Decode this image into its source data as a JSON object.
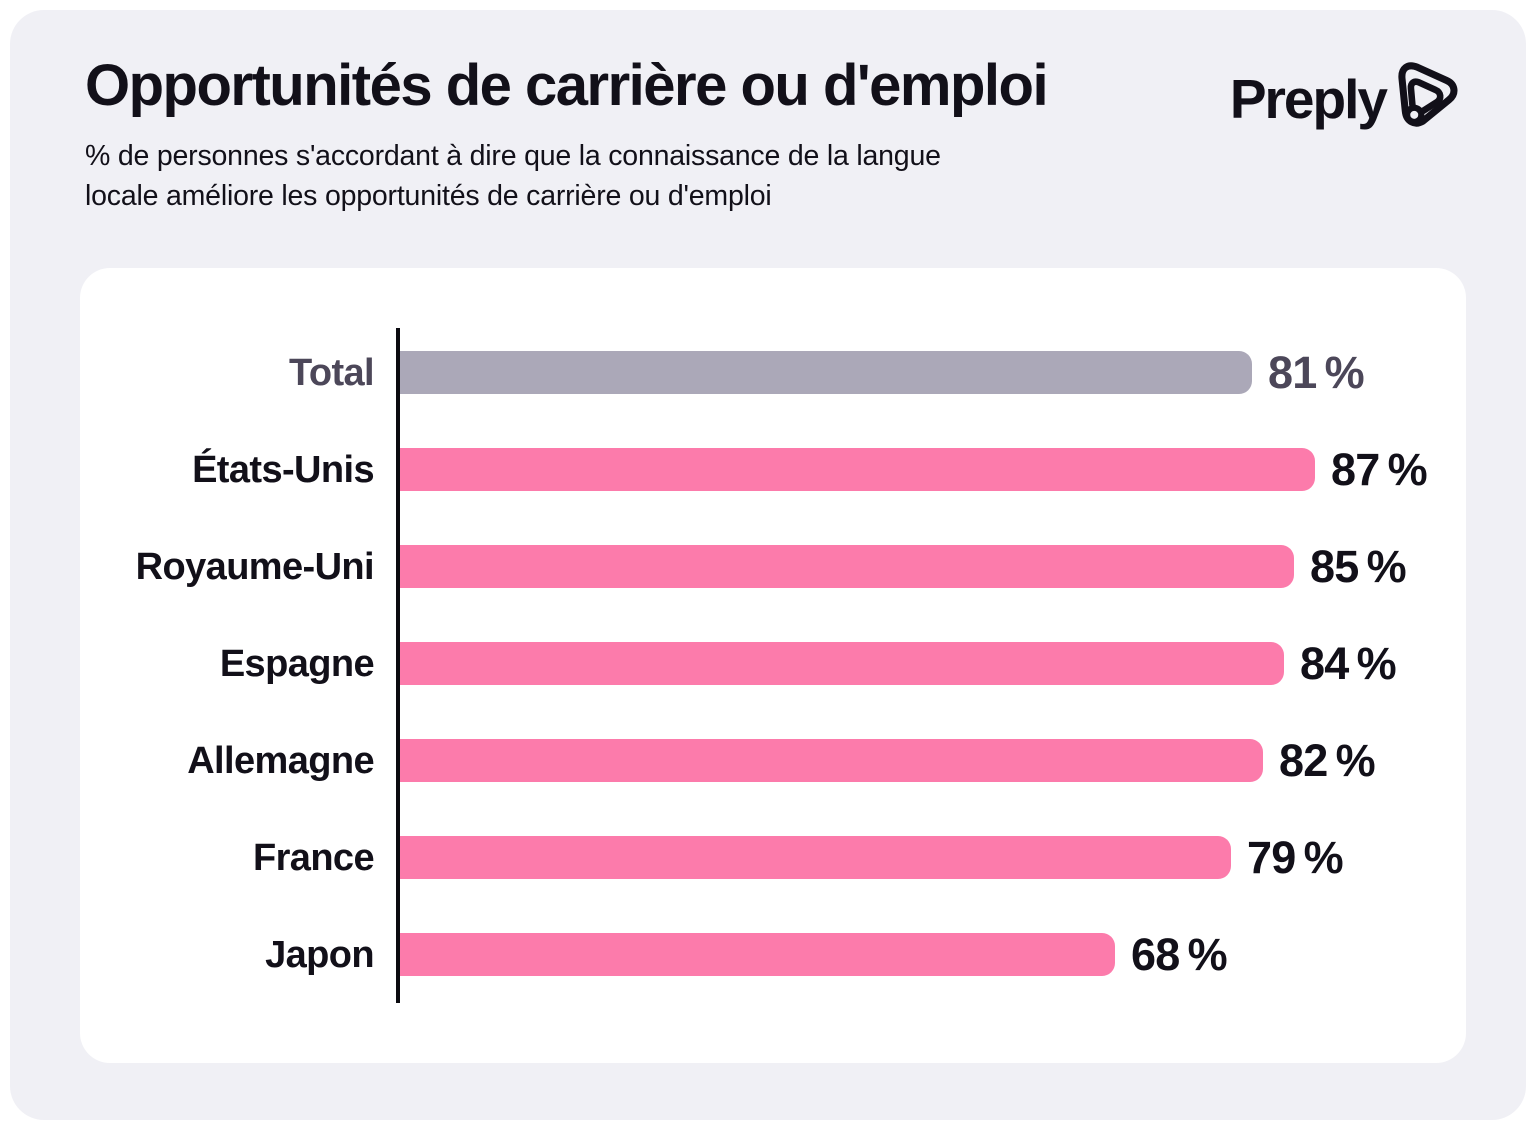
{
  "header": {
    "title": "Opportunités de carrière ou d'emploi",
    "subtitle_line1": "% de personnes s'accordant à dire que la connaissance de la langue",
    "subtitle_line2": "locale améliore les opportunités de carrière ou d'emploi",
    "brand": "Preply"
  },
  "colors": {
    "background": "#F0F0F5",
    "card": "#FFFFFF",
    "pink_bar": "#FC7BAB",
    "total_bar": "#ABA8B8",
    "total_text": "#4C4759",
    "ink": "#121019",
    "axis": "#0B0A10"
  },
  "chart_data": {
    "type": "bar",
    "orientation": "horizontal",
    "title": "Opportunités de carrière ou d'emploi",
    "subtitle": "% de personnes s'accordant à dire que la connaissance de la langue locale améliore les opportunités de carrière ou d'emploi",
    "categories": [
      "Total",
      "États-Unis",
      "Royaume-Uni",
      "Espagne",
      "Allemagne",
      "France",
      "Japon"
    ],
    "values": [
      81,
      87,
      85,
      84,
      82,
      79,
      68
    ],
    "unit": "%",
    "value_suffix": " %",
    "xlim": [
      0,
      100
    ],
    "grid": false,
    "legend": false,
    "rows": [
      {
        "label": "Total",
        "value": 81,
        "kind": "total"
      },
      {
        "label": "États-Unis",
        "value": 87,
        "kind": "country"
      },
      {
        "label": "Royaume-Uni",
        "value": 85,
        "kind": "country"
      },
      {
        "label": "Espagne",
        "value": 84,
        "kind": "country"
      },
      {
        "label": "Allemagne",
        "value": 82,
        "kind": "country"
      },
      {
        "label": "France",
        "value": 79,
        "kind": "country"
      },
      {
        "label": "Japon",
        "value": 68,
        "kind": "country"
      }
    ]
  }
}
